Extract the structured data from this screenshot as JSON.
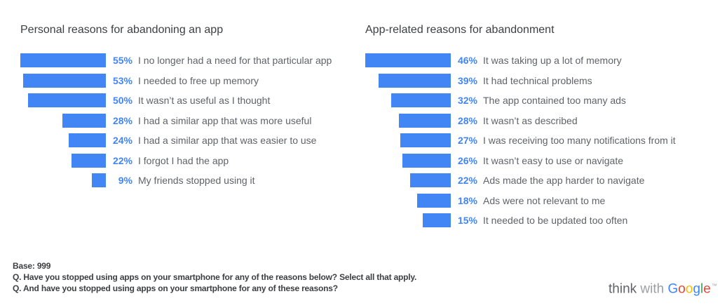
{
  "chart_data": [
    {
      "type": "bar",
      "orientation": "horizontal",
      "title": "Personal reasons for abandoning an app",
      "unit": "%",
      "bar_color": "#4285f4",
      "xlim": [
        0,
        55
      ],
      "grid": false,
      "legend": "none",
      "categories": [
        "I no longer had a need for that particular app",
        "I needed to free up memory",
        "It wasn’t as useful as I thought",
        "I had a similar app that was more useful",
        "I had a similar app that was easier to use",
        "I forgot I had the app",
        "My friends stopped using it"
      ],
      "values": [
        55,
        53,
        50,
        28,
        24,
        22,
        9
      ],
      "value_labels": [
        "55%",
        "53%",
        "50%",
        "28%",
        "24%",
        "22%",
        "9%"
      ]
    },
    {
      "type": "bar",
      "orientation": "horizontal",
      "title": "App-related reasons for abandonment",
      "unit": "%",
      "bar_color": "#4285f4",
      "xlim": [
        0,
        46
      ],
      "grid": false,
      "legend": "none",
      "categories": [
        "It was taking up a lot of memory",
        "It had technical problems",
        "The app contained too many ads",
        "It wasn’t as described",
        "I was receiving too many notifications from it",
        "It wasn’t easy to use or navigate",
        "Ads made the app harder to navigate",
        "Ads were not relevant to me",
        "It needed to be updated too often"
      ],
      "values": [
        46,
        39,
        32,
        28,
        27,
        26,
        22,
        18,
        15
      ],
      "value_labels": [
        "46%",
        "39%",
        "32%",
        "28%",
        "27%",
        "26%",
        "22%",
        "18%",
        "15%"
      ]
    }
  ],
  "footnote": {
    "lines": [
      "Base: 999",
      "Q. Have you stopped using apps on your smartphone for any of the reasons below? Select all that apply.",
      "Q. And have you stopped using apps on your smartphone for any of these reasons?"
    ]
  },
  "logo": {
    "think": "think",
    "with": "with",
    "brand": "Google",
    "trademark": "™",
    "think_color": "#5f6368",
    "with_color": "#9aa0a6",
    "letter_colors": [
      "#4285F4",
      "#EA4335",
      "#FBBC05",
      "#4285F4",
      "#34A853",
      "#EA4335"
    ]
  },
  "colors": {
    "background": "#ffffff",
    "bar": "#4285f4",
    "value_label": "#4285f4",
    "category_label": "#5f6368",
    "title": "#3c4043",
    "footnote": "#3c4043"
  }
}
